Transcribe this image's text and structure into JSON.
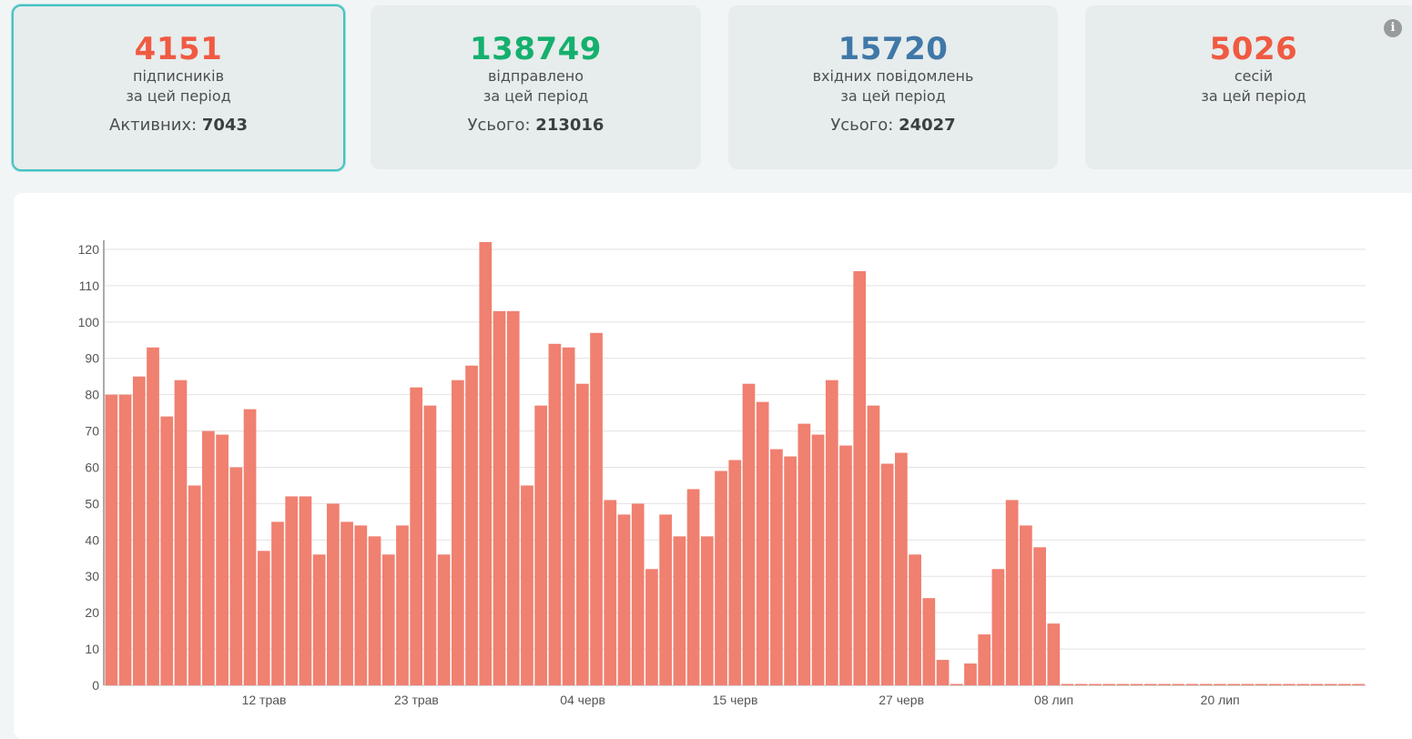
{
  "cards": [
    {
      "value": "4151",
      "label1": "підписників",
      "label2": "за цей період",
      "total_label": "Активних: ",
      "total_value": "7043",
      "color": "#f05a42"
    },
    {
      "value": "138749",
      "label1": "відправлено",
      "label2": "за цей період",
      "total_label": "Усього: ",
      "total_value": "213016",
      "color": "#15b06e"
    },
    {
      "value": "15720",
      "label1": "вхідних повідомлень",
      "label2": "за цей період",
      "total_label": "Усього: ",
      "total_value": "24027",
      "color": "#3f78a8"
    },
    {
      "value": "5026",
      "label1": "сесій",
      "label2": "за цей період",
      "total_label": "",
      "total_value": "",
      "color": "#f05a42"
    }
  ],
  "info_icon": {
    "name": "info-icon",
    "glyph": "i"
  },
  "chart_data": {
    "type": "bar",
    "title": "",
    "xlabel": "",
    "ylabel": "",
    "color": "#f08070",
    "ylim": [
      0,
      122
    ],
    "yticks": [
      0,
      10,
      20,
      30,
      40,
      50,
      60,
      70,
      80,
      90,
      100,
      110,
      120
    ],
    "grid": true,
    "xtick_labels": [
      {
        "index": 11,
        "label": "12 трав"
      },
      {
        "index": 22,
        "label": "23 трав"
      },
      {
        "index": 34,
        "label": "04 черв"
      },
      {
        "index": 45,
        "label": "15 черв"
      },
      {
        "index": 57,
        "label": "27 черв"
      },
      {
        "index": 68,
        "label": "08 лип"
      },
      {
        "index": 80,
        "label": "20 лип"
      }
    ],
    "values": [
      80,
      80,
      85,
      93,
      74,
      84,
      55,
      70,
      69,
      60,
      76,
      37,
      45,
      52,
      52,
      36,
      50,
      45,
      44,
      41,
      36,
      44,
      82,
      77,
      36,
      84,
      88,
      122,
      103,
      103,
      55,
      77,
      94,
      93,
      83,
      97,
      51,
      47,
      50,
      32,
      47,
      41,
      54,
      41,
      59,
      62,
      83,
      78,
      65,
      63,
      72,
      69,
      84,
      66,
      114,
      77,
      61,
      64,
      36,
      24,
      7,
      0,
      6,
      14,
      32,
      51,
      44,
      38,
      17,
      0,
      0,
      0,
      0,
      0,
      0,
      0,
      0,
      0,
      0,
      0,
      0,
      0,
      0,
      0,
      0,
      0,
      0,
      0,
      0,
      0,
      0
    ]
  }
}
